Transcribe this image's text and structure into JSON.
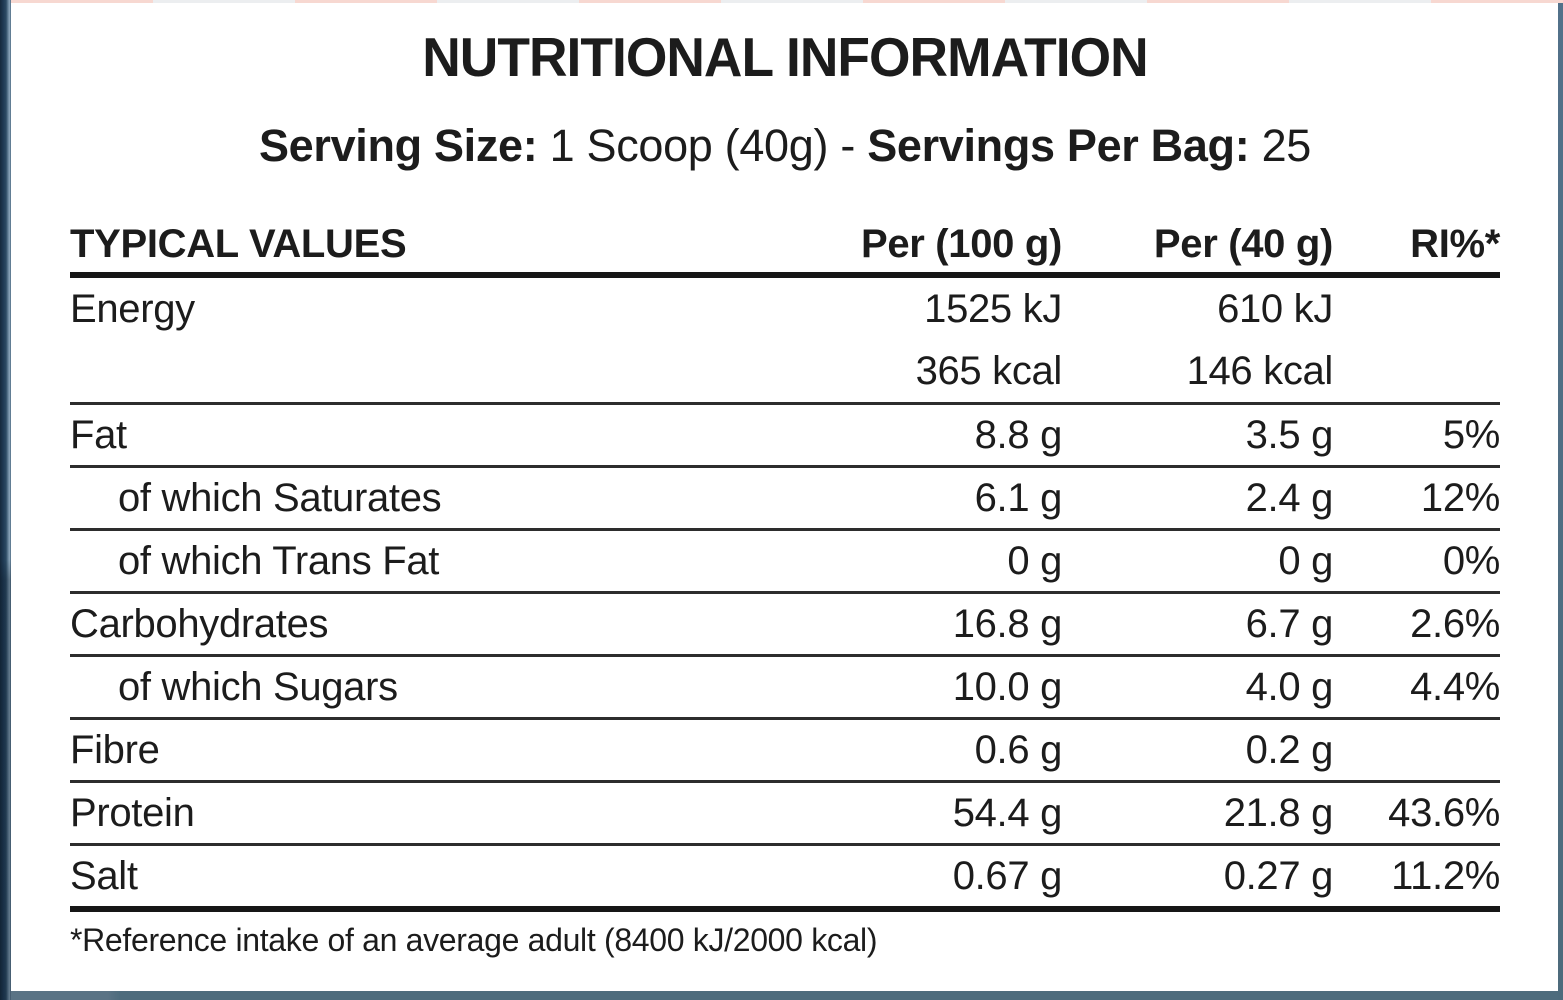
{
  "title": "NUTRITIONAL INFORMATION",
  "serving": {
    "size_label": "Serving Size:",
    "size_value": "1 Scoop (40g)",
    "separator": "-",
    "per_bag_label": "Servings Per Bag:",
    "per_bag_value": "25"
  },
  "table": {
    "headers": [
      "TYPICAL VALUES",
      "Per (100 g)",
      "Per (40 g)",
      "RI%*"
    ],
    "rows": [
      {
        "name": "Energy",
        "per100": "1525 kJ",
        "per40": "610 kJ",
        "ri": "",
        "per100_line2": "365 kcal",
        "per40_line2": "146 kcal"
      },
      {
        "name": "Fat",
        "per100": "8.8 g",
        "per40": "3.5 g",
        "ri": "5%"
      },
      {
        "name": "of which Saturates",
        "per100": "6.1 g",
        "per40": "2.4 g",
        "ri": "12%"
      },
      {
        "name": "of which Trans Fat",
        "per100": "0 g",
        "per40": "0 g",
        "ri": "0%"
      },
      {
        "name": "Carbohydrates",
        "per100": "16.8 g",
        "per40": "6.7 g",
        "ri": "2.6%"
      },
      {
        "name": "of which Sugars",
        "per100": "10.0 g",
        "per40": "4.0 g",
        "ri": "4.4%"
      },
      {
        "name": "Fibre",
        "per100": "0.6 g",
        "per40": "0.2 g",
        "ri": ""
      },
      {
        "name": "Protein",
        "per100": "54.4 g",
        "per40": "21.8 g",
        "ri": "43.6%"
      },
      {
        "name": "Salt",
        "per100": "0.67 g",
        "per40": "0.27 g",
        "ri": "11.2%"
      }
    ]
  },
  "footnote": "*Reference intake of an average adult (8400 kJ/2000 kcal)",
  "colors": {
    "text": "#1c1c1c",
    "rule-thin": "#2d2d2d",
    "rule-thick": "#161616",
    "edge-left-dark": "#16293c",
    "edge-left-mid": "#2c4a63",
    "edge-left-light": "#7e9ab0",
    "edge-bottom": "#4e6c7d",
    "edge-right": "#52718a",
    "strip-pink": "#f7d8d1",
    "strip-gray": "#eceef0",
    "label-bg": "#ffffff"
  }
}
